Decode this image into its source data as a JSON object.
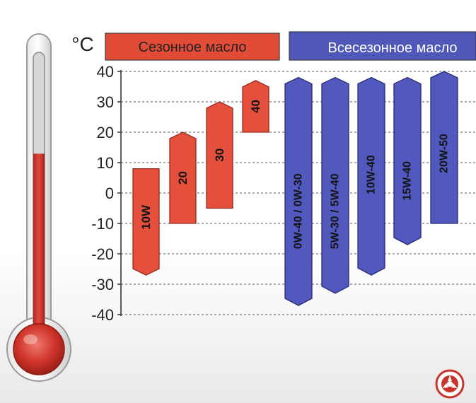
{
  "chart_data": {
    "type": "range-bar",
    "unit": "°C",
    "ylim": [
      -40,
      40
    ],
    "y_ticks": [
      "40",
      "30",
      "20",
      "10",
      "0",
      "-10",
      "-20",
      "-30",
      "-40"
    ],
    "grid": true,
    "groups": [
      {
        "name": "Сезонное масло",
        "color": "#e24b36"
      },
      {
        "name": "Всесезонное масло",
        "color": "#4f57b8"
      }
    ],
    "series": [
      {
        "name": "10W",
        "group": 0,
        "min": -27,
        "max": 8
      },
      {
        "name": "20",
        "group": 0,
        "min": -10,
        "max": 20
      },
      {
        "name": "30",
        "group": 0,
        "min": -5,
        "max": 30
      },
      {
        "name": "40",
        "group": 0,
        "min": 20,
        "max": 37
      },
      {
        "name": "0W-40 / 0W-30",
        "group": 1,
        "min": -37,
        "max": 38
      },
      {
        "name": "5W-30 / 5W-40",
        "group": 1,
        "min": -33,
        "max": 38
      },
      {
        "name": "10W-40",
        "group": 1,
        "min": -27,
        "max": 38
      },
      {
        "name": "15W-40",
        "group": 1,
        "min": -17,
        "max": 38
      },
      {
        "name": "20W-50",
        "group": 1,
        "min": -10,
        "max": 40
      }
    ]
  },
  "thermometer": {
    "level": 0.66,
    "color": "#d0342a"
  },
  "logo": {
    "name": "wheel-logo-icon",
    "color": "#c8342c"
  }
}
